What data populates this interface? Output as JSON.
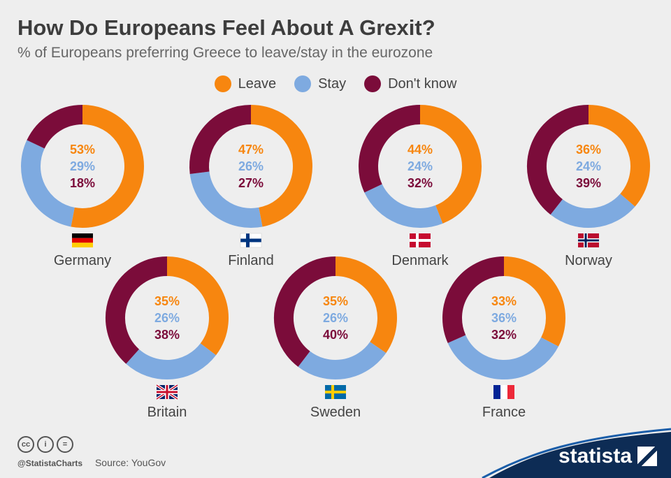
{
  "title": "How Do Europeans Feel About A Grexit?",
  "subtitle": "% of Europeans preferring Greece to leave/stay in the eurozone",
  "legend": [
    {
      "label": "Leave",
      "color": "#f7860f"
    },
    {
      "label": "Stay",
      "color": "#7eaae0"
    },
    {
      "label": "Don't know",
      "color": "#7b0c3a"
    }
  ],
  "chart_data": {
    "type": "donut",
    "series_names": [
      "Leave",
      "Stay",
      "Don't know"
    ],
    "colors": [
      "#f7860f",
      "#7eaae0",
      "#7b0c3a"
    ],
    "countries": [
      {
        "name": "Germany",
        "flag": "germany-flag",
        "values": [
          53,
          29,
          18
        ]
      },
      {
        "name": "Finland",
        "flag": "finland-flag",
        "values": [
          47,
          26,
          27
        ]
      },
      {
        "name": "Denmark",
        "flag": "denmark-flag",
        "values": [
          44,
          24,
          32
        ]
      },
      {
        "name": "Norway",
        "flag": "norway-flag",
        "values": [
          36,
          24,
          39
        ]
      },
      {
        "name": "Britain",
        "flag": "britain-flag",
        "values": [
          35,
          26,
          38
        ]
      },
      {
        "name": "Sweden",
        "flag": "sweden-flag",
        "values": [
          35,
          26,
          40
        ]
      },
      {
        "name": "France",
        "flag": "france-flag",
        "values": [
          33,
          36,
          32
        ]
      }
    ]
  },
  "footer": {
    "handle": "@StatistaCharts",
    "source": "Source: YouGov",
    "license_icons": [
      "cc",
      "i",
      "="
    ],
    "brand": "statista"
  }
}
